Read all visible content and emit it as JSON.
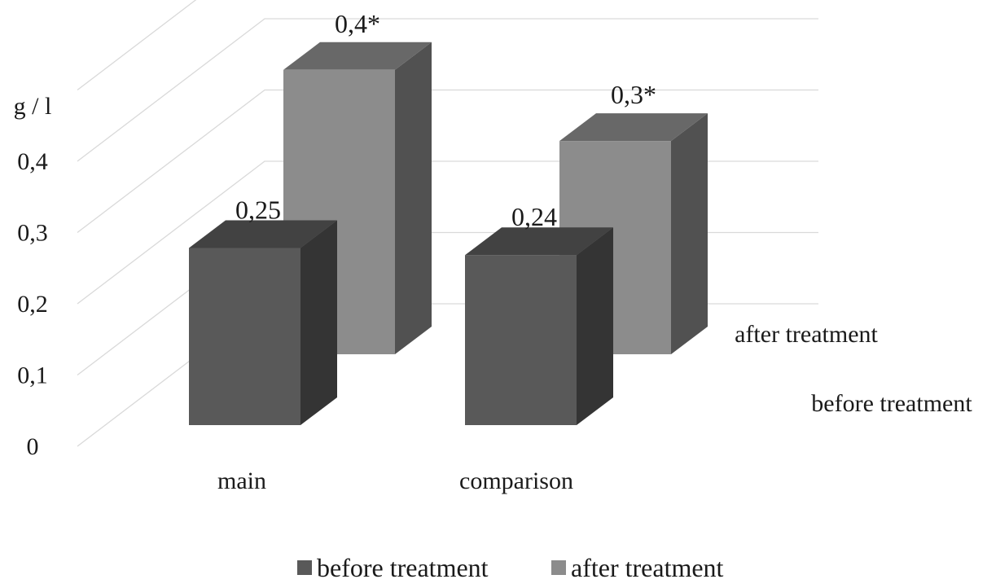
{
  "chart_data": {
    "type": "bar",
    "style": "3d-clustered",
    "unit_label": "g / l",
    "y_ticks": [
      "0",
      "0,1",
      "0,2",
      "0,3",
      "0,4"
    ],
    "ylim": [
      0,
      0.4
    ],
    "categories": [
      "main",
      "comparison"
    ],
    "series": [
      {
        "name": "before treatment",
        "values": [
          0.25,
          0.24
        ],
        "data_labels": [
          "0,25",
          "0,24"
        ],
        "color": "#595959"
      },
      {
        "name": "after treatment",
        "values": [
          0.4,
          0.3
        ],
        "data_labels": [
          "0,4*",
          "0,3*"
        ],
        "color": "#8c8c8c"
      }
    ],
    "grid": true,
    "legend_position": "bottom"
  }
}
